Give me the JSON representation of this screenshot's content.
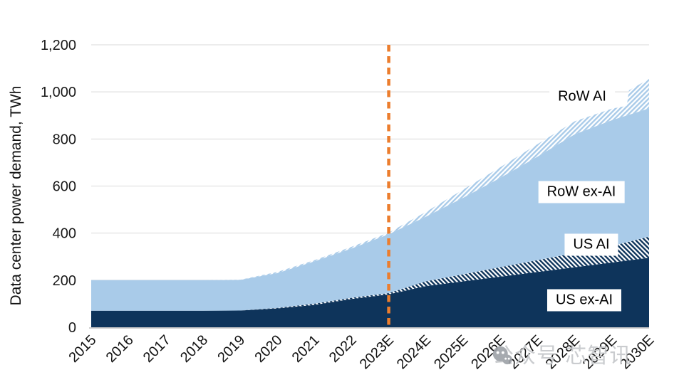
{
  "chart_data": {
    "type": "area",
    "stacked": true,
    "title": "",
    "xlabel": "",
    "ylabel": "Data center power demand, TWh",
    "categories": [
      "2015",
      "2016",
      "2017",
      "2018",
      "2019",
      "2020",
      "2021",
      "2022",
      "2023E",
      "2024E",
      "2025E",
      "2026E",
      "2027E",
      "2028E",
      "2029E",
      "2030E"
    ],
    "series": [
      {
        "name": "US ex-AI",
        "pattern": "solid",
        "color": "#0E345B",
        "values": [
          70,
          70,
          70,
          70,
          71,
          80,
          95,
          120,
          140,
          175,
          195,
          215,
          235,
          255,
          275,
          295
        ]
      },
      {
        "name": "US AI",
        "pattern": "hatched",
        "color": "#0E345B",
        "values": [
          0,
          0,
          0,
          0,
          0,
          2,
          5,
          5,
          5,
          20,
          30,
          40,
          50,
          60,
          70,
          90
        ]
      },
      {
        "name": "RoW ex-AI",
        "pattern": "solid",
        "color": "#A9CBE9",
        "values": [
          130,
          130,
          130,
          130,
          130,
          148,
          180,
          210,
          250,
          275,
          325,
          380,
          440,
          505,
          535,
          545
        ]
      },
      {
        "name": "RoW AI",
        "pattern": "hatched",
        "color": "#A9CBE9",
        "values": [
          0,
          0,
          0,
          0,
          1,
          5,
          5,
          7,
          7,
          20,
          35,
          45,
          53,
          55,
          49,
          125
        ]
      }
    ],
    "ylim": [
      0,
      1200
    ],
    "y_ticks": [
      {
        "value": 0,
        "label": "0"
      },
      {
        "value": 200,
        "label": "200"
      },
      {
        "value": 400,
        "label": "400"
      },
      {
        "value": 600,
        "label": "600"
      },
      {
        "value": 800,
        "label": "800"
      },
      {
        "value": 1000,
        "label": "1,000"
      },
      {
        "value": 1200,
        "label": "1,200"
      }
    ],
    "grid": "horizontal",
    "legend_position": "inline-labels",
    "vline": {
      "category": "2023E",
      "color": "#EC7D2D",
      "style": "dashed"
    },
    "row_ai_top_step": {
      "x_index": 14.4,
      "top_before": 941,
      "top_after": 1007
    }
  },
  "colors": {
    "gridline": "#D9D9D9",
    "axis_line": "#BFBFBF"
  },
  "watermark": {
    "icon": "wechat-icon",
    "text": "公众号 芯智讯",
    "color": "#C5C7CA",
    "icon_color": "#9DA1A7"
  }
}
